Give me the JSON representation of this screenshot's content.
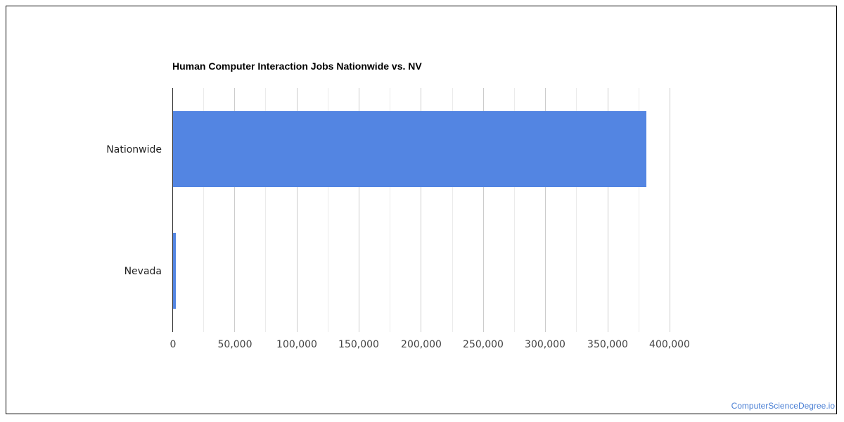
{
  "chart_data": {
    "type": "bar",
    "orientation": "horizontal",
    "title": "Human Computer Interaction Jobs Nationwide vs. NV",
    "categories": [
      "Nationwide",
      "Nevada"
    ],
    "values": [
      381300,
      2800
    ],
    "xlabel": "",
    "ylabel": "",
    "xlim": [
      0,
      400000
    ],
    "ticks": [
      "0",
      "50,000",
      "100,000",
      "150,000",
      "200,000",
      "250,000",
      "300,000",
      "350,000",
      "400,000"
    ],
    "grid": true,
    "legend": null,
    "bar_color": "#5385e2"
  },
  "watermark": "ComputerScienceDegree.io"
}
